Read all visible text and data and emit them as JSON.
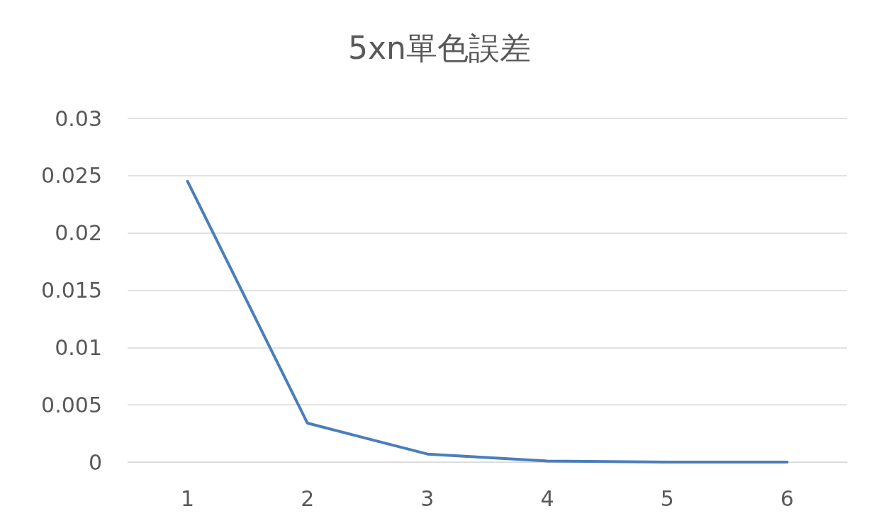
{
  "chart_data": {
    "type": "line",
    "title": "5xn單色誤差",
    "categories": [
      "1",
      "2",
      "3",
      "4",
      "5",
      "6"
    ],
    "series": [
      {
        "color": "#4a7ebb",
        "values": [
          0.0245,
          0.0034,
          0.0007,
          0.0001,
          0,
          0
        ]
      }
    ],
    "ylim": [
      0,
      0.03
    ],
    "yticks": [
      0,
      0.005,
      0.01,
      0.015,
      0.02,
      0.025,
      0.03
    ],
    "grid": "y",
    "marker": "none",
    "line_style": "solid"
  }
}
